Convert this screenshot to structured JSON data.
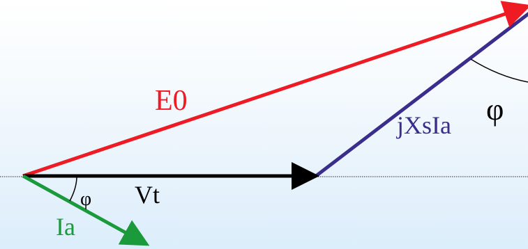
{
  "diagram": {
    "labels": {
      "e0": "E0",
      "vt": "Vt",
      "ia": "Ia",
      "jxsia": "jXsIa",
      "phi_small": "φ",
      "phi_large": "φ"
    },
    "colors": {
      "background_top": "#ffffff",
      "background_bottom": "#dcedfb",
      "e0": "#ee1b24",
      "vt": "#000000",
      "ia": "#1a9a3a",
      "jxsia": "#3a2d8c",
      "reference_line": "#222222",
      "angle_arc": "#000000"
    }
  }
}
